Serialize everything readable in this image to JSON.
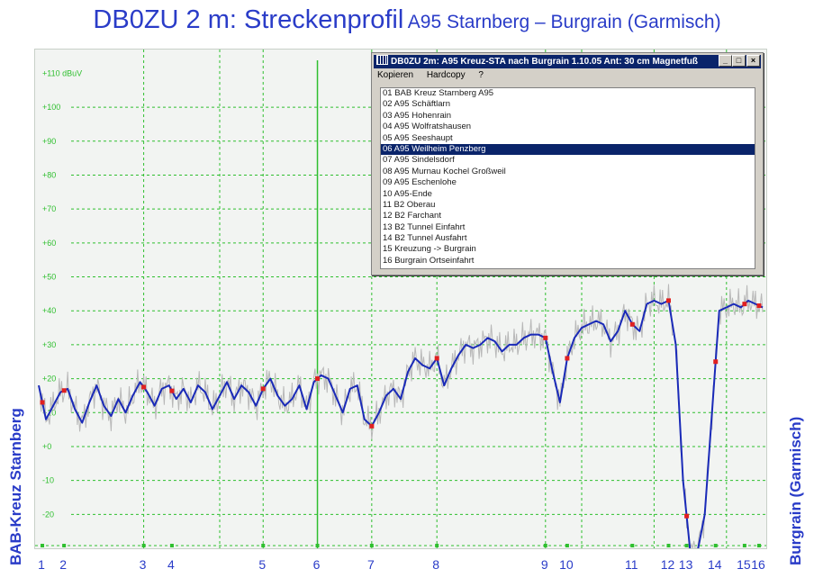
{
  "title": {
    "main": "DB0ZU 2 m:  Streckenprofil",
    "sub": "A95 Starnberg – Burgrain (Garmisch)"
  },
  "side_left": "BAB-Kreuz Starnberg",
  "side_right": "Burgrain (Garmisch)",
  "colors": {
    "title": "#2a3cc8",
    "grid": "#2fbf2f",
    "smoothed": "#1a2ab8",
    "raw": "#b8b8b8",
    "marker": "#e02020",
    "selection": "#0a246a"
  },
  "dialog": {
    "title": "DB0ZU 2m: A95 Kreuz-STA nach Burgrain 1.10.05  Ant: 30 cm Magnetfuß",
    "menu": [
      "Kopieren",
      "Hardcopy",
      "?"
    ],
    "items": [
      "01  BAB Kreuz Starnberg A95",
      "02  A95 Schäftlarn",
      "03  A95 Hohenrain",
      "04  A95 Wolfratshausen",
      "05  A95 Seeshaupt",
      "06  A95 Weilheim Penzberg",
      "07  A95 Sindelsdorf",
      "08  A95 Murnau Kochel Großweil",
      "09  A95 Eschenlohe",
      "10  A95-Ende",
      "11  B2 Oberau",
      "12  B2 Farchant",
      "13  B2 Tunnel Einfahrt",
      "14  B2 Tunnel Ausfahrt",
      "15  Kreuzung -> Burgrain",
      "16  Burgrain Ortseinfahrt"
    ],
    "selected_index": 5
  },
  "chart_data": {
    "type": "line",
    "ylabel": "+110 dBuV",
    "yticks": [
      {
        "v": 110,
        "label": "+110 dBuV"
      },
      {
        "v": 100,
        "label": "+100"
      },
      {
        "v": 90,
        "label": "+90"
      },
      {
        "v": 80,
        "label": "+80"
      },
      {
        "v": 70,
        "label": "+70"
      },
      {
        "v": 60,
        "label": "+60"
      },
      {
        "v": 50,
        "label": "+50"
      },
      {
        "v": 40,
        "label": "+40"
      },
      {
        "v": 30,
        "label": "+30"
      },
      {
        "v": 20,
        "label": "+20"
      },
      {
        "v": 10,
        "label": "+10"
      },
      {
        "v": 0,
        "label": "+0"
      },
      {
        "v": -10,
        "label": "-10"
      },
      {
        "v": -20,
        "label": "-20"
      }
    ],
    "ylim": [
      -30,
      117
    ],
    "xlim": [
      0,
      100
    ],
    "checkpoints": [
      {
        "label": "1",
        "x": 0.5
      },
      {
        "label": "2",
        "x": 3.5
      },
      {
        "label": "3",
        "x": 14.5
      },
      {
        "label": "4",
        "x": 18.4
      },
      {
        "label": "5",
        "x": 31.0
      },
      {
        "label": "6",
        "x": 38.5
      },
      {
        "label": "7",
        "x": 46.0
      },
      {
        "label": "8",
        "x": 55.0
      },
      {
        "label": "9",
        "x": 70.0
      },
      {
        "label": "10",
        "x": 73.0
      },
      {
        "label": "11",
        "x": 82.0
      },
      {
        "label": "12",
        "x": 87.0
      },
      {
        "label": "13",
        "x": 89.5
      },
      {
        "label": "14",
        "x": 93.5
      },
      {
        "label": "15",
        "x": 97.5
      },
      {
        "label": "16",
        "x": 99.5
      }
    ],
    "vgrid_x": [
      14.5,
      25,
      31,
      46,
      55,
      70,
      75,
      85,
      95
    ],
    "cursor_x": 38.5,
    "series": [
      {
        "x": [
          0,
          1,
          2,
          3,
          4,
          5,
          6,
          7,
          8,
          9,
          10,
          11,
          12,
          13,
          14,
          15,
          16,
          17,
          18,
          19,
          20,
          21,
          22,
          23,
          24,
          25,
          26,
          27,
          28,
          29,
          30,
          31,
          32,
          33,
          34,
          35,
          36,
          37,
          38,
          39,
          40,
          41,
          42,
          43,
          44,
          45,
          46,
          47,
          48,
          49,
          50,
          51,
          52,
          53,
          54,
          55,
          56,
          57,
          58,
          59,
          60,
          61,
          62,
          63,
          64,
          65,
          66,
          67,
          68,
          69,
          70,
          71,
          72,
          73,
          74,
          75,
          76,
          77,
          78,
          79,
          80,
          81,
          82,
          83,
          84,
          85,
          86,
          87,
          88,
          89,
          90,
          91,
          92,
          93,
          94,
          95,
          96,
          97,
          98,
          99,
          100
        ],
        "values": [
          18,
          8,
          12,
          16,
          17,
          11,
          7,
          13,
          18,
          12,
          9,
          14,
          10,
          15,
          19,
          16,
          12,
          17,
          18,
          14,
          17,
          13,
          18,
          16,
          11,
          15,
          19,
          14,
          18,
          16,
          12,
          17,
          20,
          15,
          12,
          14,
          18,
          11,
          19,
          21,
          20,
          15,
          10,
          17,
          18,
          8,
          6,
          10,
          15,
          17,
          14,
          22,
          26,
          24,
          23,
          26,
          18,
          23,
          27,
          30,
          29,
          30,
          32,
          31,
          28,
          30,
          30,
          32,
          33,
          33,
          32,
          22,
          13,
          26,
          32,
          35,
          36,
          37,
          36,
          31,
          34,
          40,
          36,
          34,
          42,
          43,
          42,
          43,
          30,
          -10,
          -31,
          -31,
          -20,
          10,
          40,
          41,
          42,
          41,
          43,
          42,
          41
        ]
      }
    ]
  }
}
